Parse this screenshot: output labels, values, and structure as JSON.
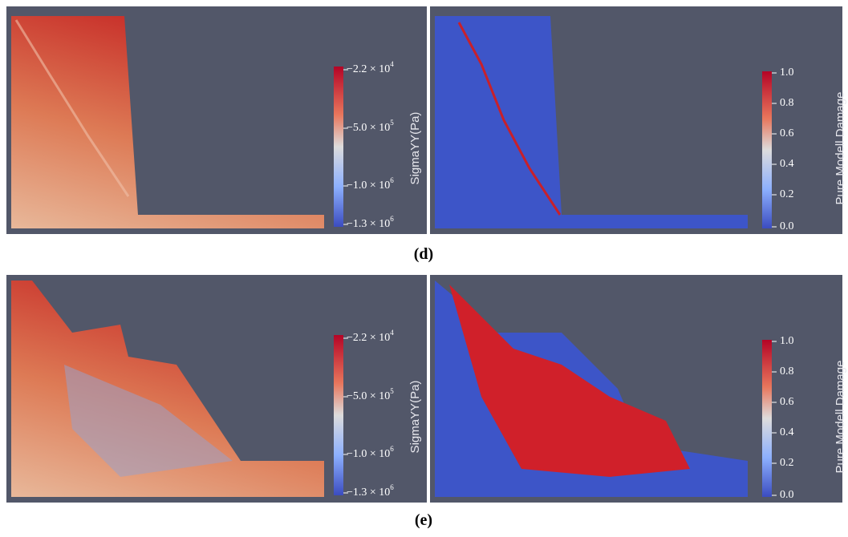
{
  "panels": [
    {
      "caption": "(d)",
      "left": {
        "colorbar_title": "SigmaYY(Pa)",
        "ticks": [
          {
            "mantissa": "−2.2 × 10",
            "exponent": "4"
          },
          {
            "mantissa": "−5.0 × 10",
            "exponent": "5"
          },
          {
            "mantissa": "−1.0 × 10",
            "exponent": "6"
          },
          {
            "mantissa": "−1.3 × 10",
            "exponent": "6"
          }
        ]
      },
      "right": {
        "colorbar_title": "Pure Modell Damage",
        "ticks": [
          "1.0",
          "0.8",
          "0.6",
          "0.4",
          "0.2",
          "0.0"
        ]
      }
    },
    {
      "caption": "(e)",
      "left": {
        "colorbar_title": "SigmaYY(Pa)",
        "ticks": [
          {
            "mantissa": "−2.2 × 10",
            "exponent": "4"
          },
          {
            "mantissa": "−5.0 × 10",
            "exponent": "5"
          },
          {
            "mantissa": "−1.0 × 10",
            "exponent": "6"
          },
          {
            "mantissa": "−1.3 × 10",
            "exponent": "6"
          }
        ]
      },
      "right": {
        "colorbar_title": "Pure Modell Damage",
        "ticks": [
          "1.0",
          "0.8",
          "0.6",
          "0.4",
          "0.2",
          "0.0"
        ]
      }
    }
  ]
}
